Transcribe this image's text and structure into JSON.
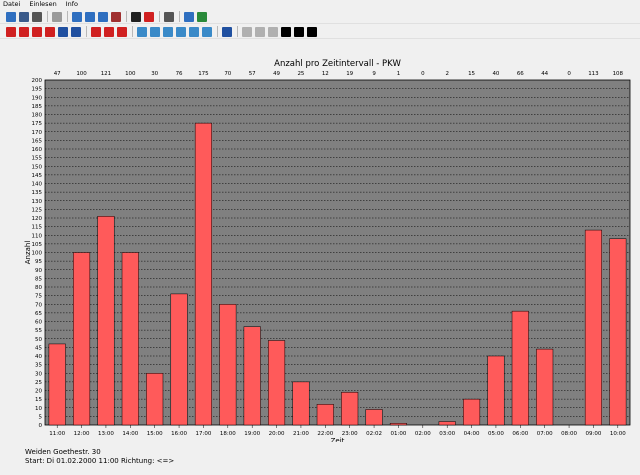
{
  "menu": [
    "Datei",
    "Einlesen",
    "Info"
  ],
  "toolbar1": [
    {
      "icon": "open-folder-icon",
      "color": "#2f6fc0"
    },
    {
      "icon": "save-disk-icon",
      "color": "#3a5a8a"
    },
    {
      "icon": "print-preview-icon",
      "color": "#555555"
    },
    {
      "sep": true
    },
    {
      "icon": "filter-icon",
      "color": "#9a9a9a"
    },
    {
      "sep": true
    },
    {
      "icon": "windows-icon",
      "color": "#2f6fc0"
    },
    {
      "icon": "folder-icon",
      "color": "#2f6fc0"
    },
    {
      "icon": "bar-chart-icon",
      "color": "#2f6fc0"
    },
    {
      "icon": "report-icon",
      "color": "#a03030"
    },
    {
      "sep": true
    },
    {
      "icon": "record-icon",
      "color": "#202020"
    },
    {
      "icon": "stop-icon",
      "color": "#d02020"
    },
    {
      "sep": true
    },
    {
      "icon": "printer-icon",
      "color": "#555555"
    },
    {
      "sep": true
    },
    {
      "icon": "info-icon",
      "color": "#2f6fc0"
    },
    {
      "icon": "globe-icon",
      "color": "#2a8a3a"
    }
  ],
  "toolbar2": [
    {
      "icon": "vehicle-car-icon",
      "color": "#d02020"
    },
    {
      "icon": "vehicle-truck-icon",
      "color": "#d02020"
    },
    {
      "icon": "vehicle-van-icon",
      "color": "#d02020"
    },
    {
      "icon": "vehicle-pickup-icon",
      "color": "#d02020"
    },
    {
      "icon": "vehicle-bus-icon",
      "color": "#2050a0"
    },
    {
      "icon": "vehicle-trailer-icon",
      "color": "#2050a0"
    },
    {
      "sep": true
    },
    {
      "icon": "vehicle-lorry-icon",
      "color": "#d02020"
    },
    {
      "icon": "vehicle-semi-icon",
      "color": "#d02020"
    },
    {
      "icon": "vehicle-tractor-icon",
      "color": "#d02020"
    },
    {
      "sep": true
    },
    {
      "icon": "chart-type-a-icon",
      "color": "#3a8ac8"
    },
    {
      "icon": "chart-type-b-icon",
      "color": "#3a8ac8"
    },
    {
      "icon": "chart-type-c-icon",
      "color": "#3a8ac8"
    },
    {
      "icon": "chart-type-d-icon",
      "color": "#3a8ac8"
    },
    {
      "icon": "chart-type-e-icon",
      "color": "#3a8ac8"
    },
    {
      "icon": "chart-type-f-icon",
      "color": "#3a8ac8"
    },
    {
      "sep": true
    },
    {
      "icon": "settings-icon",
      "color": "#2050a0"
    },
    {
      "sep": true
    },
    {
      "icon": "nav-first-icon",
      "color": "#b0b0b0"
    },
    {
      "icon": "nav-prev-icon",
      "color": "#b0b0b0"
    },
    {
      "icon": "nav-back-icon",
      "color": "#b0b0b0"
    },
    {
      "icon": "nav-play-icon",
      "color": "#000000"
    },
    {
      "icon": "nav-next-icon",
      "color": "#000000"
    },
    {
      "icon": "nav-last-icon",
      "color": "#000000"
    }
  ],
  "chart_data": {
    "type": "bar",
    "title": "Anzahl pro Zeitintervall - PKW",
    "xlabel": "Zeit",
    "ylabel": "Anzahl",
    "ylim": [
      0,
      200
    ],
    "ytick_step": 5,
    "grid": true,
    "bar_color": "#ff5a5a",
    "plot_background": "#808080",
    "categories": [
      "11:00",
      "12:00",
      "13:00",
      "14:00",
      "15:00",
      "16:00",
      "17:00",
      "18:00",
      "19:00",
      "20:00",
      "21:00",
      "22:00",
      "23:00",
      "02:02",
      "01:00",
      "02:00",
      "03:00",
      "04:00",
      "05:00",
      "06:00",
      "07:00",
      "08:00",
      "09:00",
      "10:00"
    ],
    "values": [
      47,
      100,
      121,
      100,
      30,
      76,
      175,
      70,
      57,
      49,
      25,
      12,
      19,
      9,
      1,
      0,
      2,
      15,
      40,
      66,
      44,
      0,
      113,
      108
    ],
    "top_labels": [
      "47",
      "100",
      "121",
      "100",
      "30",
      "76",
      "175",
      "70",
      "57",
      "49",
      "25",
      "12",
      "19",
      "9",
      "1",
      "0",
      "2",
      "15",
      "40",
      "66",
      "44",
      "0",
      "113",
      "108"
    ]
  },
  "footer": {
    "location": "Weiden Goethestr. 30",
    "start": "Start: Di  01.02.2000  11:00   Richtung: <=>"
  }
}
